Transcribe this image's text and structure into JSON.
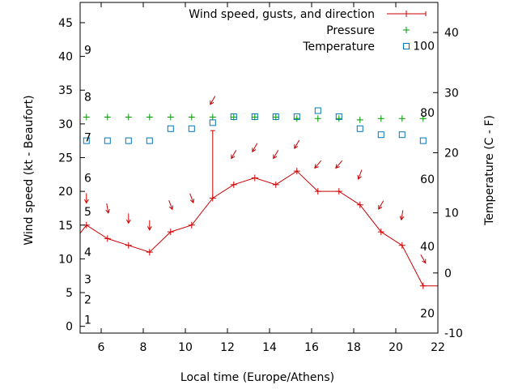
{
  "chart_data": {
    "type": "line",
    "xlabel": "Local time (Europe/Athens)",
    "ylabel_left": "Wind speed (kt - Beaufort)",
    "ylabel_right": "Temperature (C - F)",
    "xlim": [
      5,
      22
    ],
    "ylim_left": [
      -1,
      48
    ],
    "ylim_right": [
      -10,
      45
    ],
    "x_ticks": [
      6,
      8,
      10,
      12,
      14,
      16,
      18,
      20,
      22
    ],
    "y_ticks_left": [
      0,
      5,
      10,
      15,
      20,
      25,
      30,
      35,
      40,
      45
    ],
    "y_ticks_right": [
      -10,
      0,
      10,
      20,
      30,
      40
    ],
    "beaufort_labels": [
      {
        "label": "1",
        "y": 1
      },
      {
        "label": "2",
        "y": 4
      },
      {
        "label": "3",
        "y": 7
      },
      {
        "label": "4",
        "y": 11
      },
      {
        "label": "5",
        "y": 17
      },
      {
        "label": "6",
        "y": 22
      },
      {
        "label": "7",
        "y": 28
      },
      {
        "label": "8",
        "y": 34
      },
      {
        "label": "9",
        "y": 41
      }
    ],
    "fahrenheit_labels": [
      {
        "label": "20",
        "t": -6.7
      },
      {
        "label": "40",
        "t": 4.4
      },
      {
        "label": "60",
        "t": 15.6
      },
      {
        "label": "80",
        "t": 26.7
      },
      {
        "label": "100",
        "t": 37.8
      }
    ],
    "legend": [
      {
        "name": "Wind speed, gusts, and direction",
        "color": "#cc0000"
      },
      {
        "name": "Pressure",
        "color": "#009900"
      },
      {
        "name": "Temperature",
        "color": "#0077bb"
      }
    ],
    "legend_position": "top-right",
    "series": [
      {
        "name": "Wind speed, gusts, and direction",
        "color": "#cc0000",
        "x": [
          4.3,
          5.3,
          6.3,
          7.3,
          8.3,
          9.3,
          10.3,
          11.3,
          12.3,
          13.3,
          14.3,
          15.3,
          16.3,
          17.3,
          18.3,
          19.3,
          20.3,
          21.3,
          22
        ],
        "values": [
          11,
          15,
          13,
          12,
          11,
          14,
          15,
          19,
          21,
          22,
          21,
          23,
          20,
          20,
          18,
          14,
          12,
          6,
          6
        ],
        "gusts": [
          null,
          null,
          null,
          null,
          null,
          null,
          null,
          29,
          null,
          null,
          null,
          null,
          null,
          null,
          null,
          null,
          null,
          null,
          null
        ]
      },
      {
        "name": "Pressure",
        "color": "#009900",
        "x": [
          5.3,
          6.3,
          7.3,
          8.3,
          9.3,
          10.3,
          11.3,
          12.3,
          13.3,
          14.3,
          15.3,
          16.3,
          17.3,
          18.3,
          19.3,
          20.3,
          21.3
        ],
        "values": [
          31,
          31,
          31,
          31,
          31,
          31,
          31,
          31,
          31,
          31,
          30.8,
          30.8,
          30.8,
          30.6,
          30.8,
          30.8,
          30.8
        ]
      },
      {
        "name": "Temperature",
        "color": "#0077bb",
        "axis": "right",
        "x": [
          5.3,
          6.3,
          7.3,
          8.3,
          9.3,
          10.3,
          11.3,
          12.3,
          13.3,
          14.3,
          15.3,
          16.3,
          17.3,
          18.3,
          19.3,
          20.3,
          21.3
        ],
        "values": [
          22,
          22,
          22,
          22,
          24,
          24,
          25,
          26,
          26,
          26,
          26,
          27,
          26,
          24,
          23,
          23,
          22
        ]
      }
    ],
    "direction_arrows": {
      "x": [
        5.3,
        6.3,
        7.3,
        8.3,
        9.3,
        10.3,
        11.3,
        12.3,
        13.3,
        14.3,
        15.3,
        16.3,
        17.3,
        18.3,
        19.3,
        20.3,
        21.3
      ],
      "y": [
        19,
        17.5,
        16,
        15,
        18,
        19,
        33.5,
        25.5,
        26.5,
        25.5,
        27,
        24,
        24,
        22.5,
        18,
        16.5,
        10
      ],
      "angle_deg": [
        90,
        80,
        90,
        90,
        70,
        70,
        120,
        120,
        120,
        120,
        120,
        130,
        130,
        110,
        120,
        100,
        60
      ]
    }
  }
}
